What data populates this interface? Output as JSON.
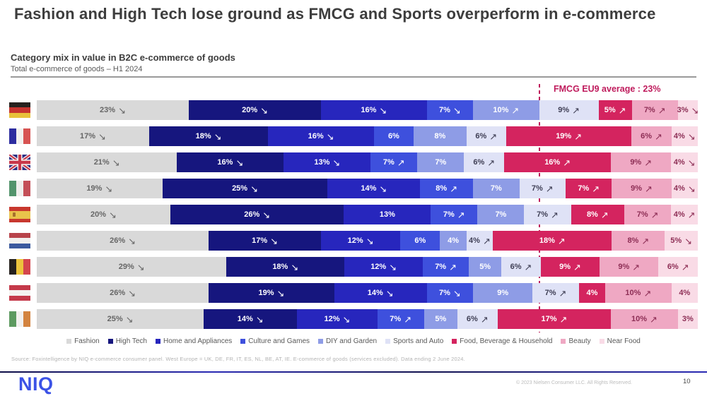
{
  "title": "Fashion and High Tech lose ground as FMCG and Sports overperform in e-commerce",
  "section": {
    "heading": "Category mix in value in B2C e-commerce of goods",
    "subheading": "Total e-commerce of goods – H1 2024"
  },
  "chart_data": {
    "type": "bar",
    "stacked": true,
    "orientation": "horizontal",
    "unit": "%",
    "categories": [
      "Fashion",
      "High Tech",
      "Home and Appliances",
      "Culture and Games",
      "DIY and Garden",
      "Sports and Auto",
      "Food, Beverage & Household",
      "Beauty",
      "Near Food"
    ],
    "segment_colors": [
      "#d9d9d9",
      "#16167e",
      "#2726bd",
      "#3e50dd",
      "#8e9ce6",
      "#dfe2f6",
      "#d4245f",
      "#efa8c3",
      "#f9dbe6"
    ],
    "label_colors": [
      "#666666",
      "#ffffff",
      "#ffffff",
      "#ffffff",
      "#ffffff",
      "#3f3f55",
      "#ffffff",
      "#8d2e55",
      "#8d2e55"
    ],
    "trend_glyphs": {
      "up": "↗",
      "down": "↘"
    },
    "rows": [
      {
        "country": "Germany",
        "code": "germany",
        "values": [
          23,
          20,
          16,
          7,
          10,
          9,
          5,
          7,
          3
        ],
        "trends": [
          "down",
          "down",
          "down",
          "down",
          "up",
          "up",
          "up",
          "up",
          "down"
        ],
        "flag": {
          "type": "h",
          "stripes": [
            "#26211e",
            "#c6332e",
            "#e8c23a"
          ]
        }
      },
      {
        "country": "France",
        "code": "france",
        "values": [
          17,
          18,
          16,
          6,
          8,
          6,
          19,
          6,
          4
        ],
        "trends": [
          "down",
          "down",
          "down",
          null,
          null,
          "up",
          "up",
          "up",
          "down"
        ],
        "flag": {
          "type": "v",
          "stripes": [
            "#2d2da0",
            "#f2f0ee",
            "#d75352"
          ]
        }
      },
      {
        "country": "United Kingdom",
        "code": "united-kingdom",
        "values": [
          21,
          16,
          13,
          7,
          7,
          6,
          16,
          9,
          4
        ],
        "trends": [
          "down",
          "down",
          "down",
          "up",
          null,
          "up",
          "up",
          "up",
          "down"
        ],
        "flag": {
          "type": "uk"
        }
      },
      {
        "country": "Italy",
        "code": "italy",
        "values": [
          19,
          25,
          14,
          8,
          7,
          7,
          7,
          9,
          4
        ],
        "trends": [
          "down",
          "down",
          "down",
          "up",
          null,
          "up",
          "up",
          "up",
          "down"
        ],
        "flag": {
          "type": "v",
          "stripes": [
            "#53946c",
            "#f0eeec",
            "#c44f58"
          ]
        }
      },
      {
        "country": "Spain",
        "code": "spain",
        "values": [
          20,
          26,
          13,
          7,
          7,
          7,
          8,
          7,
          4
        ],
        "trends": [
          "down",
          "down",
          null,
          "up",
          null,
          "up",
          "up",
          "up",
          "up"
        ],
        "flag": {
          "type": "h",
          "stripes": [
            "#c8382e",
            "#e9c34b",
            "#c8382e"
          ],
          "ratios": [
            25,
            50,
            25
          ],
          "emblem": "#a5702c"
        }
      },
      {
        "country": "Netherlands",
        "code": "netherlands",
        "values": [
          26,
          17,
          12,
          6,
          4,
          4,
          18,
          8,
          5
        ],
        "trends": [
          "down",
          "down",
          "down",
          null,
          null,
          "up",
          "up",
          "up",
          "down"
        ],
        "flag": {
          "type": "h",
          "stripes": [
            "#b8434a",
            "#f2f0ee",
            "#3c5a9e"
          ]
        }
      },
      {
        "country": "Belgium",
        "code": "belgium",
        "values": [
          29,
          18,
          12,
          7,
          5,
          6,
          9,
          9,
          6
        ],
        "trends": [
          "down",
          "down",
          "down",
          "up",
          null,
          "up",
          "up",
          "up",
          "up"
        ],
        "flag": {
          "type": "v",
          "stripes": [
            "#26211e",
            "#ecc33d",
            "#d4454c"
          ]
        }
      },
      {
        "country": "Austria",
        "code": "austria",
        "values": [
          26,
          19,
          14,
          7,
          9,
          7,
          4,
          10,
          4
        ],
        "trends": [
          "down",
          "down",
          "down",
          "down",
          null,
          "up",
          null,
          "up",
          null
        ],
        "flag": {
          "type": "h",
          "stripes": [
            "#c4394a",
            "#f4f2f0",
            "#c4394a"
          ]
        }
      },
      {
        "country": "Ireland",
        "code": "ireland",
        "values": [
          25,
          14,
          12,
          7,
          5,
          6,
          17,
          10,
          3
        ],
        "trends": [
          "down",
          "down",
          "down",
          "up",
          null,
          "up",
          "up",
          "up",
          null
        ],
        "flag": {
          "type": "v",
          "stripes": [
            "#5d9a60",
            "#f2f0ee",
            "#d3833f"
          ]
        }
      }
    ],
    "reference_line": {
      "label": "FMCG EU9 average : 23%",
      "color": "#bf1b5c"
    },
    "legend_position": "bottom",
    "xlim": [
      0,
      100
    ]
  },
  "source": "Source: Foxintelligence by NIQ e-commerce consumer panel. West Europe = UK, DE, FR, IT, ES, NL, BE, AT, IE. E-commerce of goods (services excluded). Data ending 2 June 2024.",
  "footer": {
    "logo": "NIQ",
    "logo_color": "#3b52e6",
    "copyright": "© 2023 Nielsen Consumer LLC. All Rights Reserved.",
    "page_number": "10"
  }
}
